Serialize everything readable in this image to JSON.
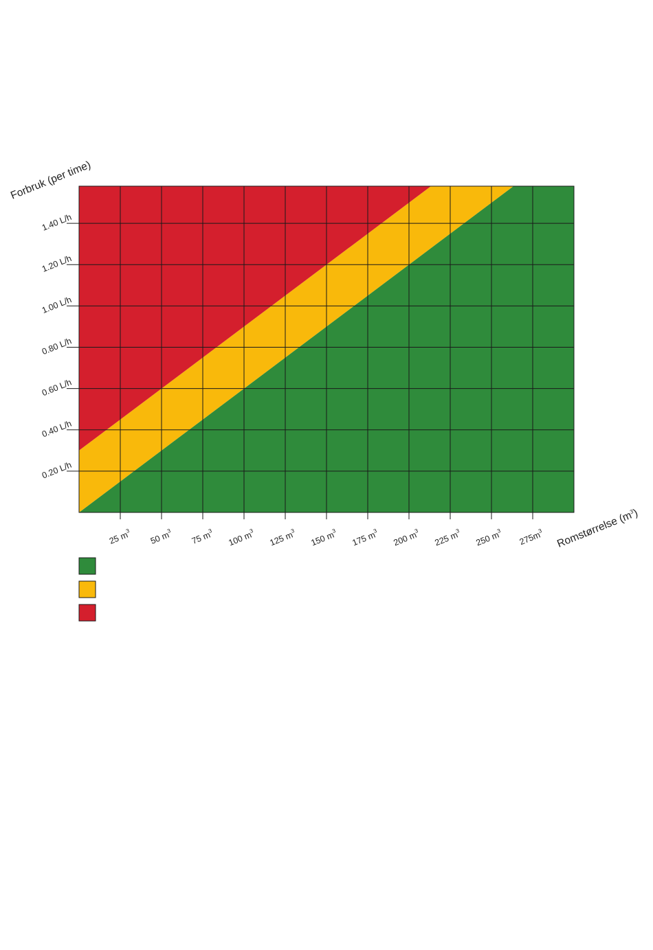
{
  "chart_data": {
    "type": "area",
    "title": "",
    "ylabel": "Forbruk (per time)",
    "xlabel_base": "Romstørrelse (m",
    "xlabel_sup": "3",
    "xlabel_close": ")",
    "unit_sup": "3",
    "xlim": [
      0,
      300
    ],
    "ylim": [
      0,
      1.58
    ],
    "grid": true,
    "x_ticks": [
      {
        "value": 25,
        "label": "25 m"
      },
      {
        "value": 50,
        "label": "50 m"
      },
      {
        "value": 75,
        "label": "75 m"
      },
      {
        "value": 100,
        "label": "100 m"
      },
      {
        "value": 125,
        "label": "125 m"
      },
      {
        "value": 150,
        "label": "150 m"
      },
      {
        "value": 175,
        "label": "175 m"
      },
      {
        "value": 200,
        "label": "200 m"
      },
      {
        "value": 225,
        "label": "225 m"
      },
      {
        "value": 250,
        "label": "250 m"
      },
      {
        "value": 275,
        "label": "275m"
      }
    ],
    "y_ticks": [
      {
        "value": 0.2,
        "label": "0.20 L/h"
      },
      {
        "value": 0.4,
        "label": "0.40 L/h"
      },
      {
        "value": 0.6,
        "label": "0.60 L/h"
      },
      {
        "value": 0.8,
        "label": "0.80 L/h"
      },
      {
        "value": 1.0,
        "label": "1.00 L/h"
      },
      {
        "value": 1.2,
        "label": "1.20 L/h"
      },
      {
        "value": 1.4,
        "label": "1.40 L/h"
      }
    ],
    "boundaries": [
      {
        "x": [
          0,
          300
        ],
        "y": [
          0,
          1.8
        ]
      },
      {
        "x": [
          0,
          300
        ],
        "y": [
          0.3,
          2.1
        ]
      }
    ],
    "zones": [
      {
        "color": "#2f8b3b"
      },
      {
        "color": "#f9b90b"
      },
      {
        "color": "#d41f2d"
      }
    ],
    "legend": {
      "placement": "bottom-left",
      "items": [
        {
          "color": "#2f8b3b",
          "label": ""
        },
        {
          "color": "#f9b90b",
          "label": ""
        },
        {
          "color": "#d41f2d",
          "label": ""
        }
      ]
    }
  }
}
